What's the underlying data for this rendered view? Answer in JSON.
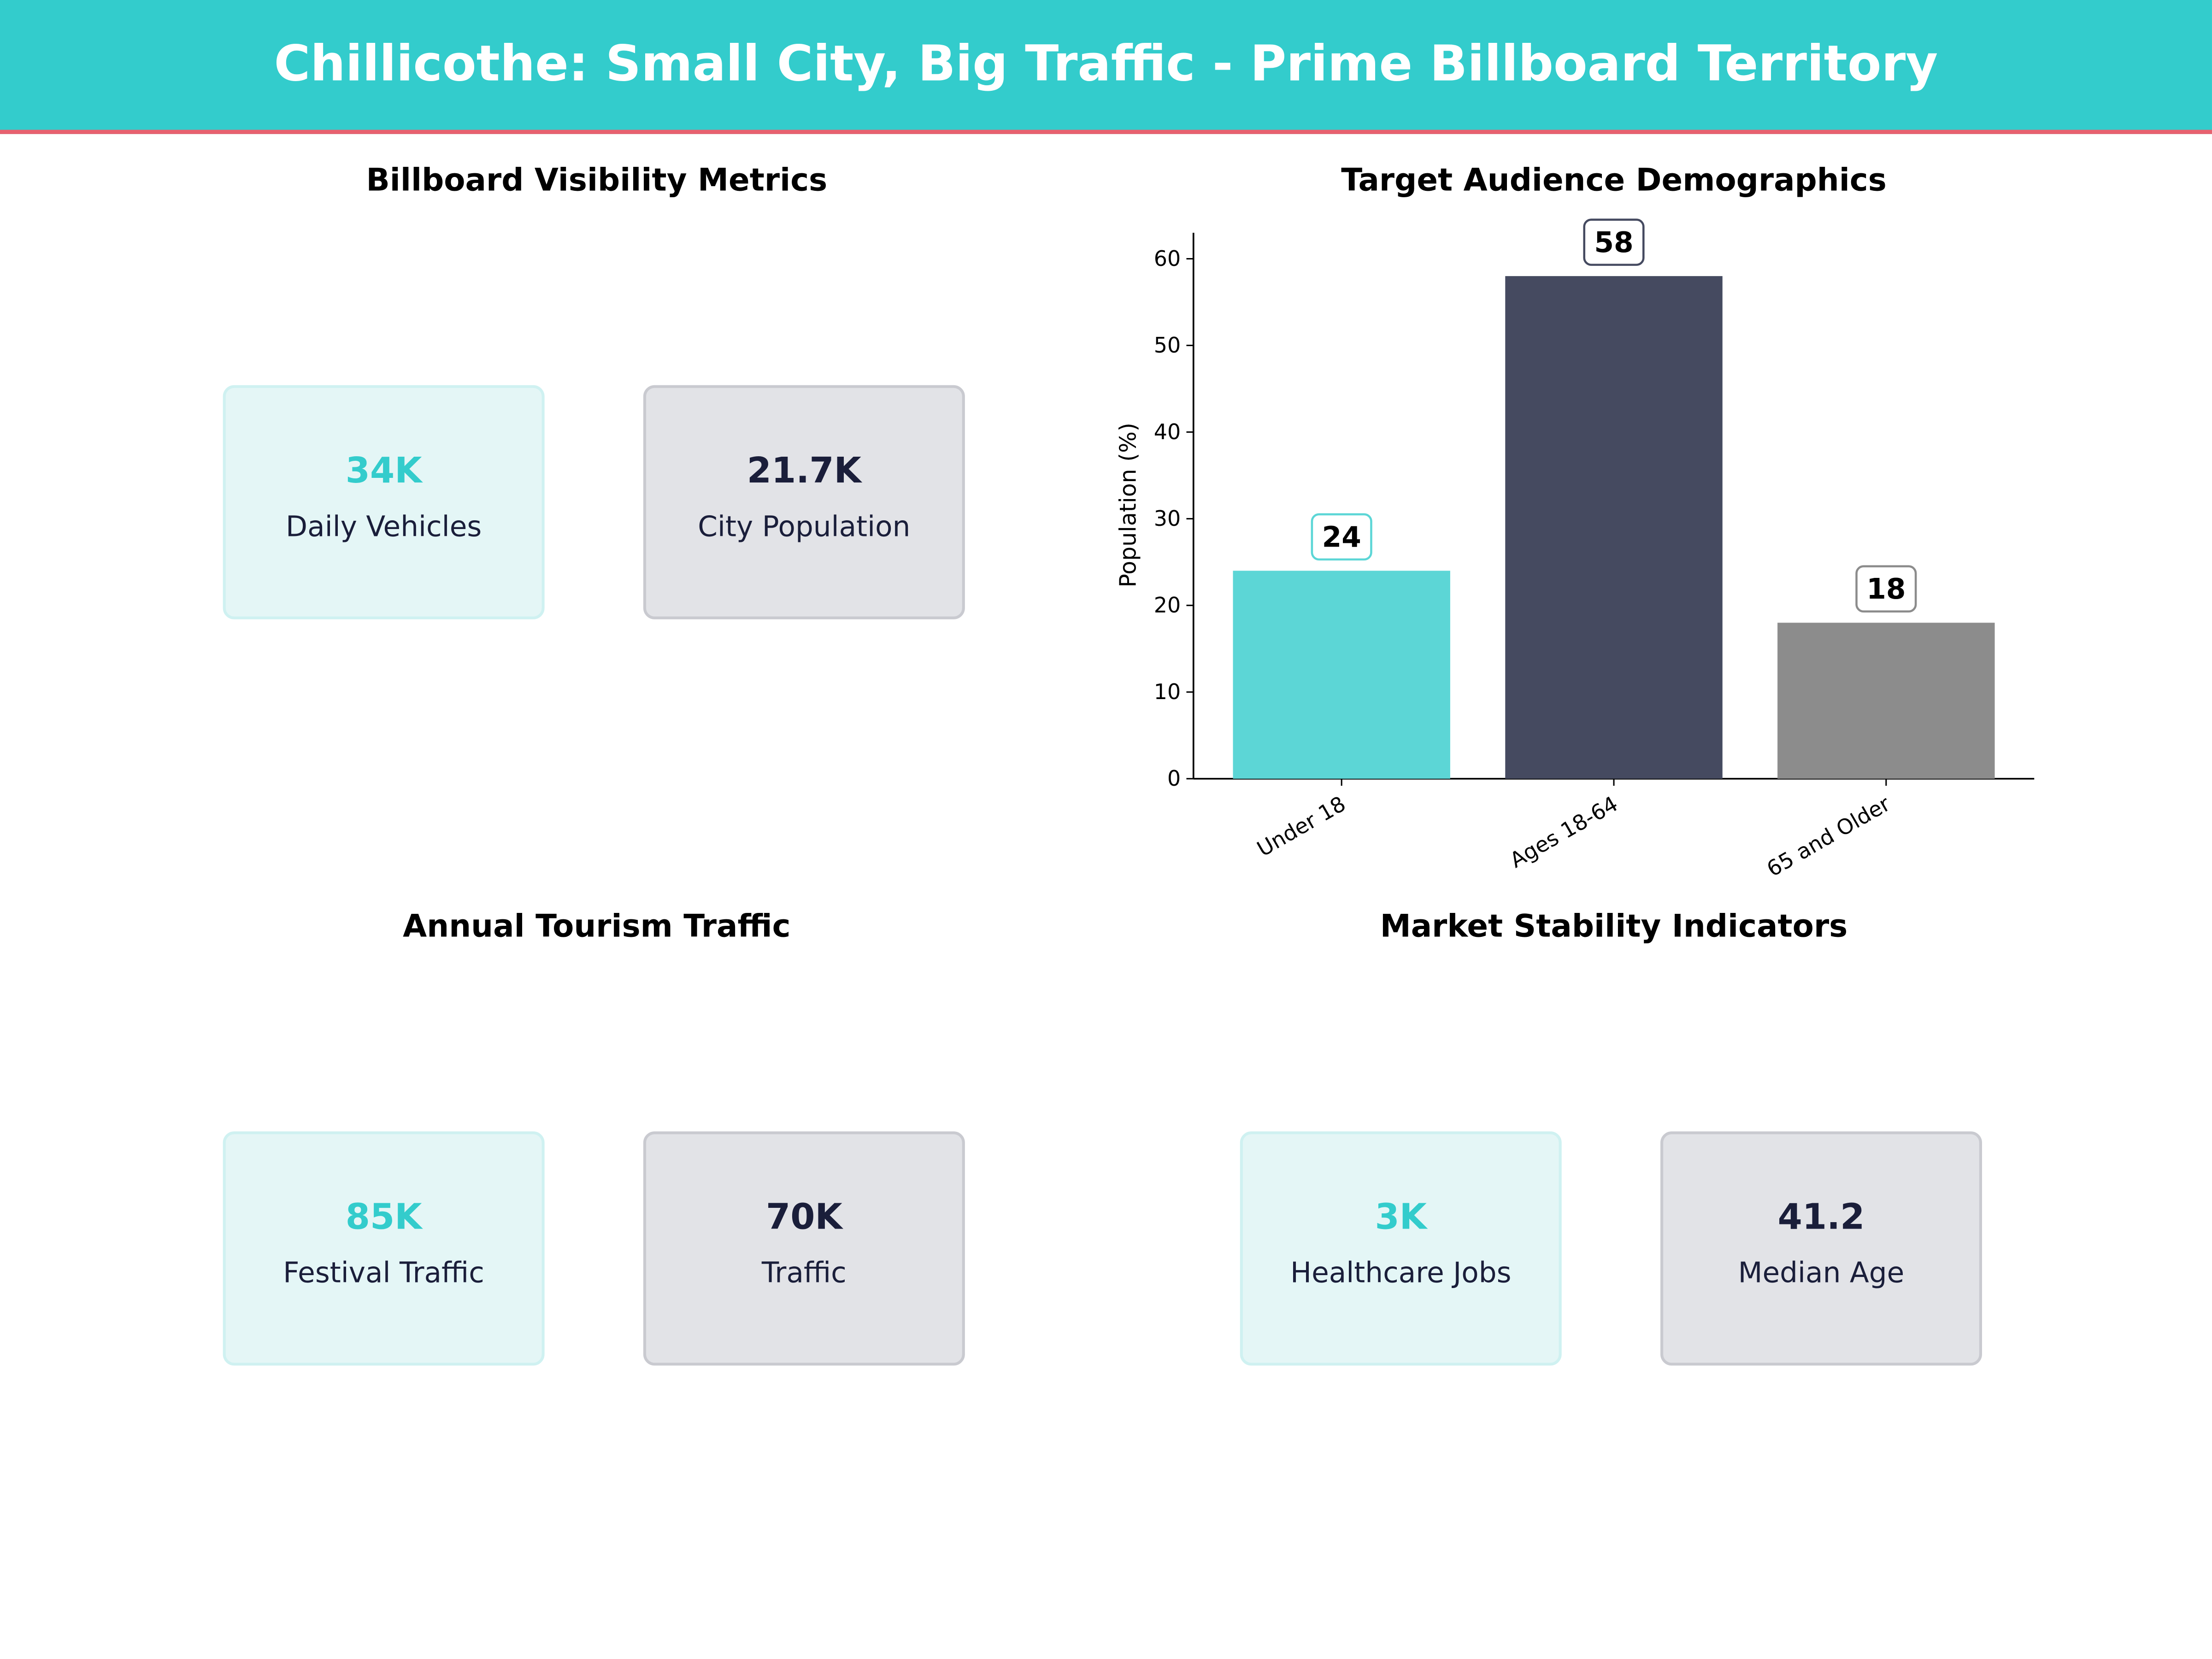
{
  "header": {
    "title": "Chillicothe: Small City, Big Traffic - Prime Billboard Territory"
  },
  "colors": {
    "accent": "#33CCCC",
    "dark": "#1A1E3A",
    "divider": "#E8616F"
  },
  "panels": {
    "visibility": {
      "title": "Billboard Visibility Metrics",
      "cards": [
        {
          "value": "34K",
          "label": "Daily Vehicles"
        },
        {
          "value": "21.7K",
          "label": "City Population"
        }
      ]
    },
    "tourism": {
      "title": "Annual Tourism Traffic",
      "cards": [
        {
          "value": "85K",
          "label": "Festival Traffic"
        },
        {
          "value": "70K",
          "label": "Traffic"
        }
      ]
    },
    "stability": {
      "title": "Market Stability Indicators",
      "cards": [
        {
          "value": "3K",
          "label": "Healthcare Jobs"
        },
        {
          "value": "41.2",
          "label": "Median Age"
        }
      ]
    }
  },
  "chart_data": {
    "type": "bar",
    "title": "Target Audience Demographics",
    "categories": [
      "Under 18",
      "Ages 18-64",
      "65 and Older"
    ],
    "values": [
      24,
      58,
      18
    ],
    "colors": [
      "#5CD6D6",
      "#454A60",
      "#8C8C8C"
    ],
    "xlabel": "",
    "ylabel": "Population (%)",
    "ylim": [
      0,
      63
    ],
    "yticks": [
      0,
      10,
      20,
      30,
      40,
      50,
      60
    ],
    "grid": false
  }
}
